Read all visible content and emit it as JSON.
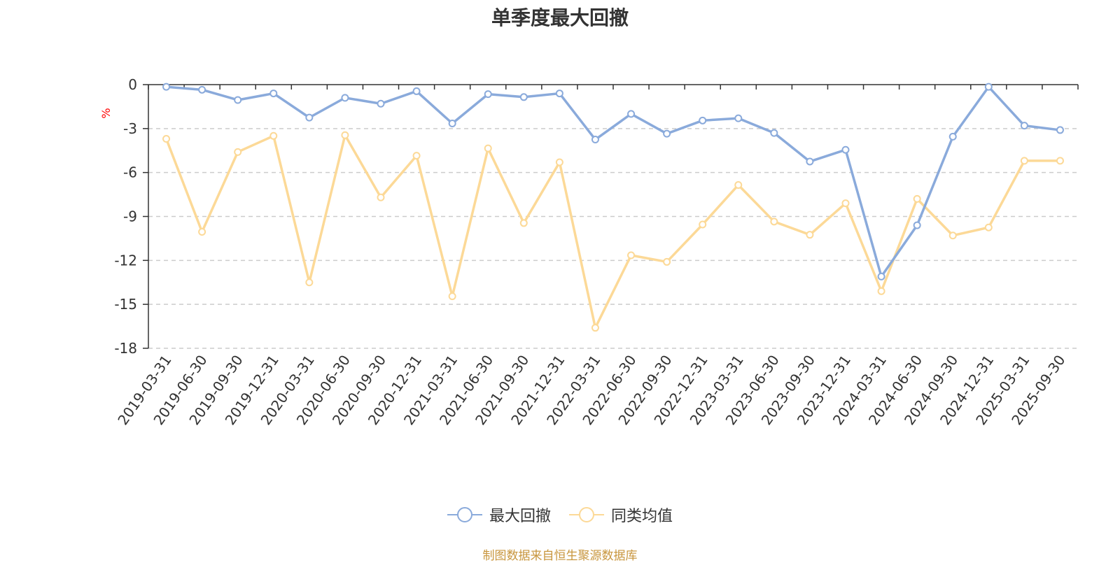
{
  "chart_data": {
    "type": "line",
    "title": "单季度最大回撤",
    "ylabel": "%",
    "xlabel": "",
    "ylim": [
      -18,
      0
    ],
    "yticks": [
      0,
      -3,
      -6,
      -9,
      -12,
      -15,
      -18
    ],
    "grid": true,
    "legend_position": "bottom",
    "categories": [
      "2019-03-31",
      "2019-06-30",
      "2019-09-30",
      "2019-12-31",
      "2020-03-31",
      "2020-06-30",
      "2020-09-30",
      "2020-12-31",
      "2021-03-31",
      "2021-06-30",
      "2021-09-30",
      "2021-12-31",
      "2022-03-31",
      "2022-06-30",
      "2022-09-30",
      "2022-12-31",
      "2023-03-31",
      "2023-06-30",
      "2023-09-30",
      "2023-12-31",
      "2024-03-31",
      "2024-06-30",
      "2024-09-30",
      "2024-12-31",
      "2025-03-31",
      "2025-09-30"
    ],
    "series": [
      {
        "name": "最大回撤",
        "color": "#8aaadb",
        "values": [
          -0.15,
          -0.35,
          -1.05,
          -0.6,
          -2.25,
          -0.9,
          -1.3,
          -0.45,
          -2.65,
          -0.65,
          -0.85,
          -0.6,
          -3.75,
          -2.0,
          -3.35,
          -2.45,
          -2.3,
          -3.3,
          -5.25,
          -4.45,
          -13.1,
          -9.6,
          -3.55,
          -0.15,
          -2.8,
          -3.1
        ]
      },
      {
        "name": "同类均值",
        "color": "#fcd997",
        "values": [
          -3.7,
          -10.05,
          -4.6,
          -3.5,
          -13.5,
          -3.45,
          -7.7,
          -4.85,
          -14.45,
          -4.35,
          -9.45,
          -5.3,
          -16.6,
          -11.65,
          -12.1,
          -9.55,
          -6.85,
          -9.35,
          -10.25,
          -8.1,
          -14.1,
          -7.8,
          -10.3,
          -9.75,
          -5.2,
          -5.2
        ]
      }
    ],
    "source_note": "制图数据来自恒生聚源数据库"
  }
}
